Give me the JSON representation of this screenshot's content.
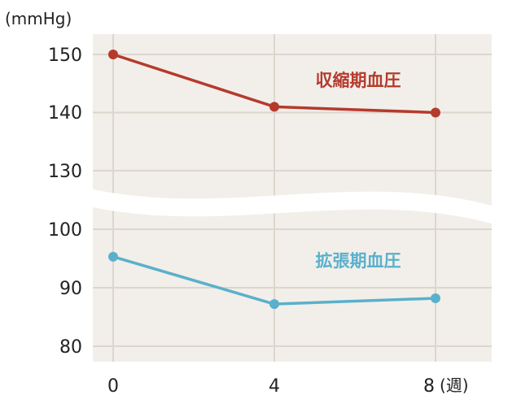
{
  "chart_data": {
    "type": "line",
    "ylabel": "(mmHg)",
    "xlabel": "(週)",
    "x": [
      0,
      4,
      8
    ],
    "x_ticks": [
      "0",
      "4",
      "8"
    ],
    "y_ticks": [
      "150",
      "140",
      "130",
      "100",
      "90",
      "80"
    ],
    "ylim": [
      80,
      150
    ],
    "axis_break": [
      130,
      100
    ],
    "grid": true,
    "series": [
      {
        "name": "収縮期血圧",
        "values": [
          150,
          141,
          140
        ],
        "color": "#b53a2c"
      },
      {
        "name": "拡張期血圧",
        "values": [
          95.3,
          87.2,
          88.2
        ],
        "color": "#5ab0cc"
      }
    ],
    "colors": {
      "plot_background": "#f2efea",
      "grid": "#dcd6cc"
    }
  }
}
